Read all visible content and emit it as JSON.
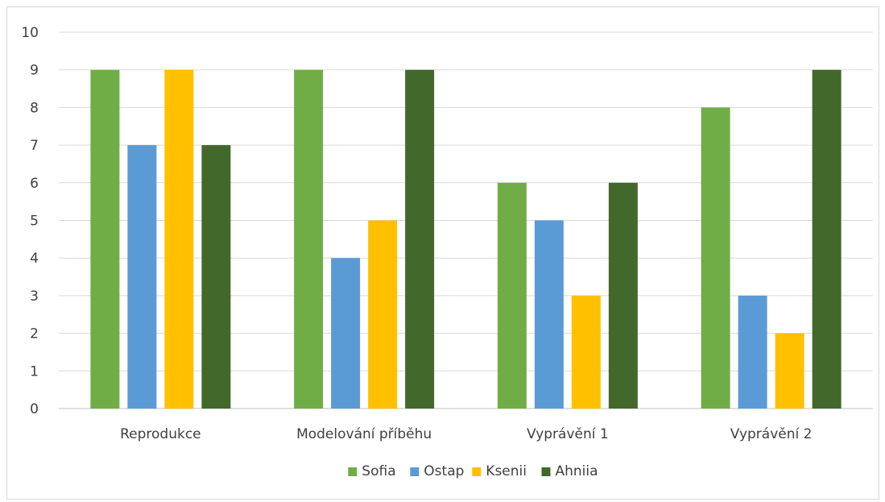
{
  "chart_data": {
    "type": "bar",
    "categories": [
      "Reprodukce",
      "Modelování příběhu",
      "Vyprávění 1",
      "Vyprávění 2"
    ],
    "series": [
      {
        "name": "Sofia",
        "color": "#70AD47",
        "values": [
          9,
          9,
          6,
          8
        ]
      },
      {
        "name": "Ostap",
        "color": "#5B9BD5",
        "values": [
          7,
          4,
          5,
          3
        ]
      },
      {
        "name": "Ksenii",
        "color": "#FFC000",
        "values": [
          9,
          5,
          3,
          2
        ]
      },
      {
        "name": "Ahniia",
        "color": "#43682B",
        "values": [
          7,
          9,
          6,
          9
        ]
      }
    ],
    "ylim": [
      0,
      10
    ],
    "yticks": [
      0,
      1,
      2,
      3,
      4,
      5,
      6,
      7,
      8,
      9,
      10
    ],
    "grid": true,
    "legend": "bottom",
    "title": "",
    "xlabel": "",
    "ylabel": ""
  }
}
